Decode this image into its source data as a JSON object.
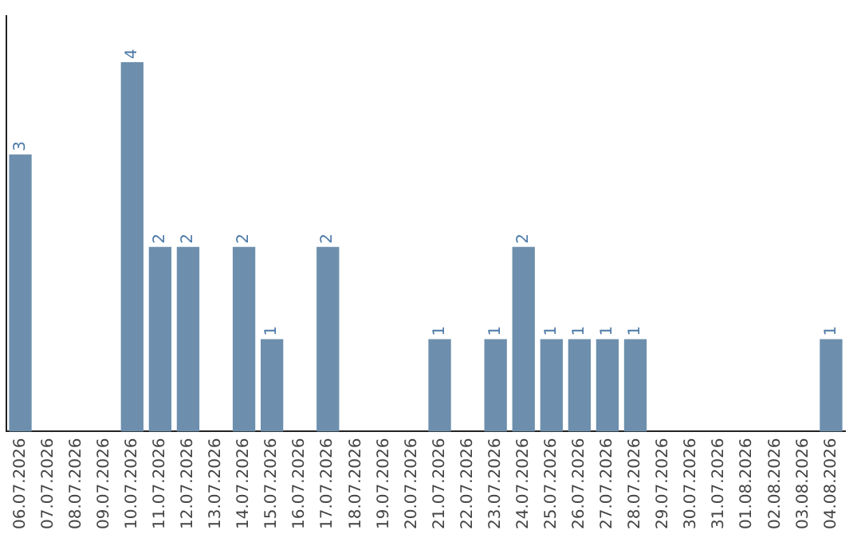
{
  "chart_data": {
    "type": "bar",
    "categories": [
      "06.07.2026",
      "07.07.2026",
      "08.07.2026",
      "09.07.2026",
      "10.07.2026",
      "11.07.2026",
      "12.07.2026",
      "13.07.2026",
      "14.07.2026",
      "15.07.2026",
      "16.07.2026",
      "17.07.2026",
      "18.07.2026",
      "19.07.2026",
      "20.07.2026",
      "21.07.2026",
      "22.07.2026",
      "23.07.2026",
      "24.07.2026",
      "25.07.2026",
      "26.07.2026",
      "27.07.2026",
      "28.07.2026",
      "29.07.2026",
      "30.07.2026",
      "31.07.2026",
      "01.08.2026",
      "02.08.2026",
      "03.08.2026",
      "04.08.2026"
    ],
    "values": [
      3,
      0,
      0,
      0,
      4,
      2,
      2,
      0,
      2,
      1,
      0,
      2,
      0,
      0,
      0,
      1,
      0,
      1,
      2,
      1,
      1,
      1,
      1,
      0,
      0,
      0,
      0,
      0,
      0,
      1
    ],
    "value_labels": [
      "3",
      null,
      null,
      null,
      "4",
      "2",
      "2",
      null,
      "2",
      "1",
      null,
      "2",
      null,
      null,
      null,
      "1",
      null,
      "1",
      "2",
      "1",
      "1",
      "1",
      "1",
      null,
      null,
      null,
      null,
      null,
      null,
      "1"
    ],
    "color": "#6d8fad",
    "grid": false,
    "legend": false
  }
}
